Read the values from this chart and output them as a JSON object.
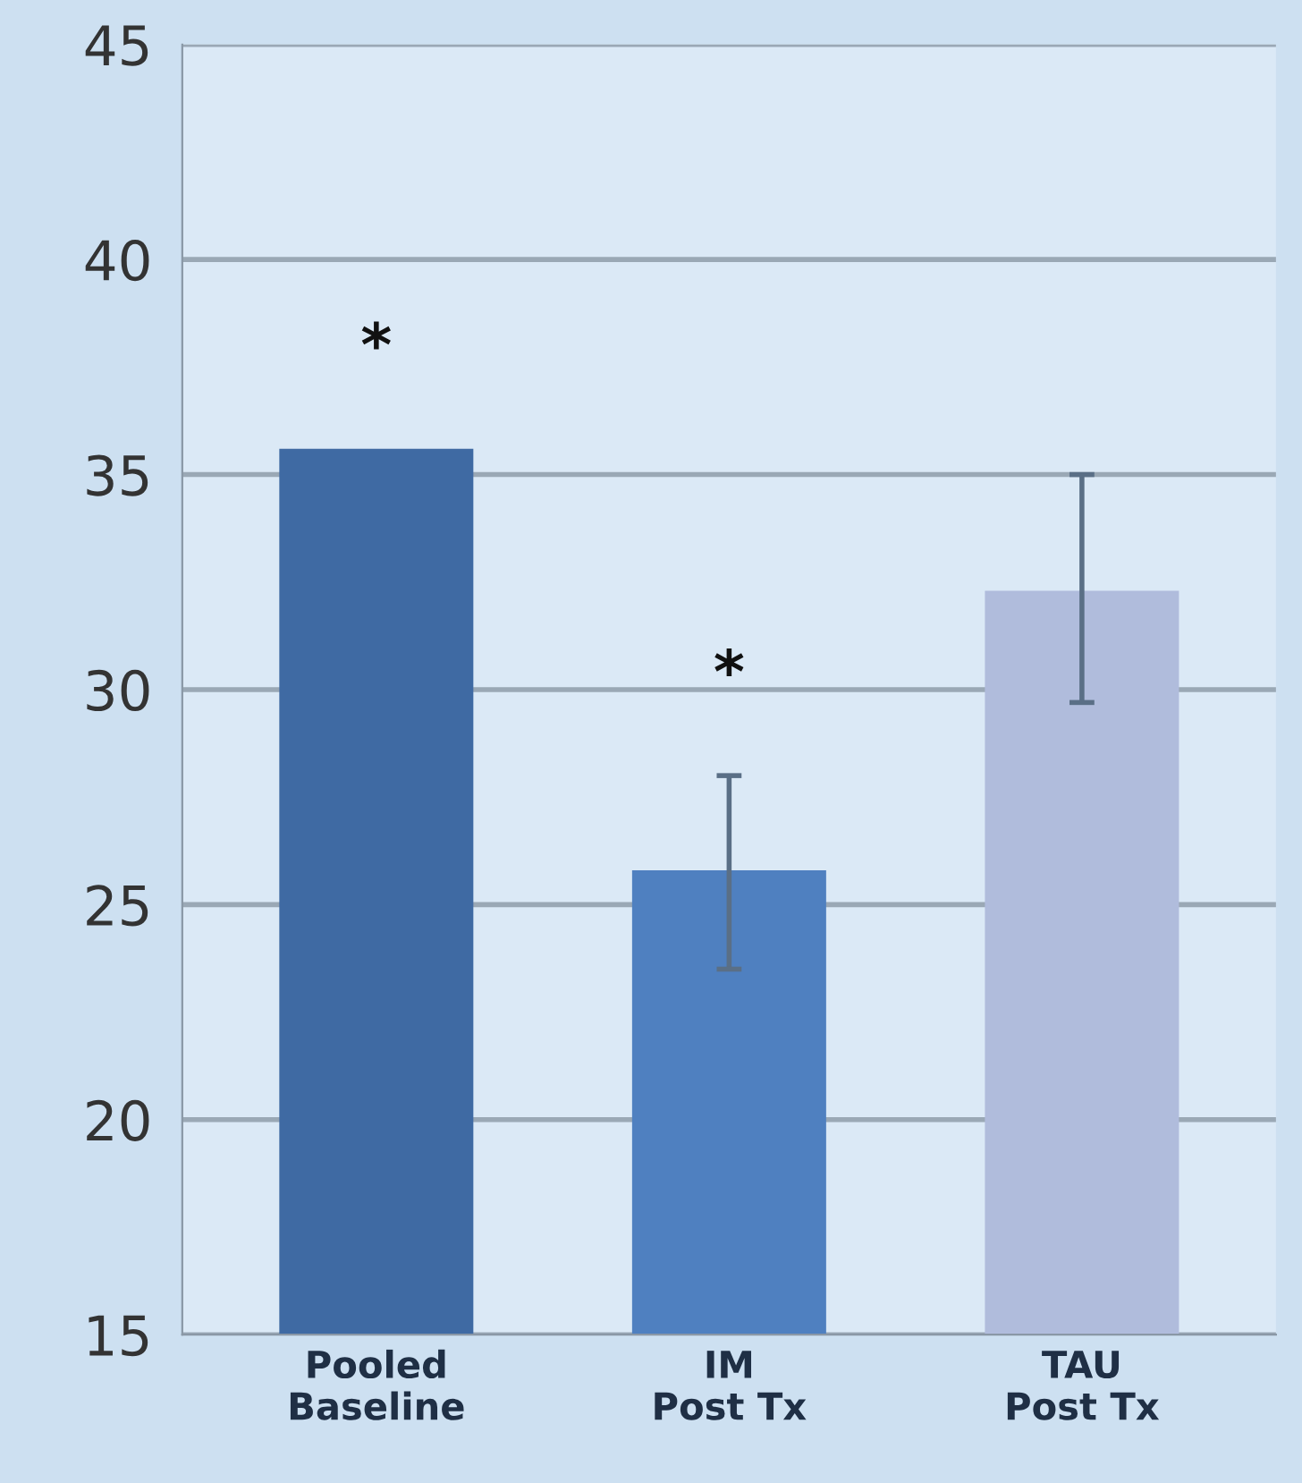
{
  "chart_data": {
    "type": "bar",
    "categories": [
      "Pooled\nBaseline",
      "IM\nPost Tx",
      "TAU\nPost Tx"
    ],
    "values": [
      35.6,
      25.8,
      32.3
    ],
    "colors": [
      "#3f6aa3",
      "#4f80c0",
      "#b0bcdc"
    ],
    "errors": [
      null,
      [
        23.5,
        28.0
      ],
      [
        29.7,
        35.0
      ]
    ],
    "ylim": [
      15,
      45
    ],
    "yticks": [
      15,
      20,
      25,
      30,
      35,
      40,
      45
    ],
    "grid": "y",
    "annotations": [
      "*",
      "*"
    ]
  }
}
